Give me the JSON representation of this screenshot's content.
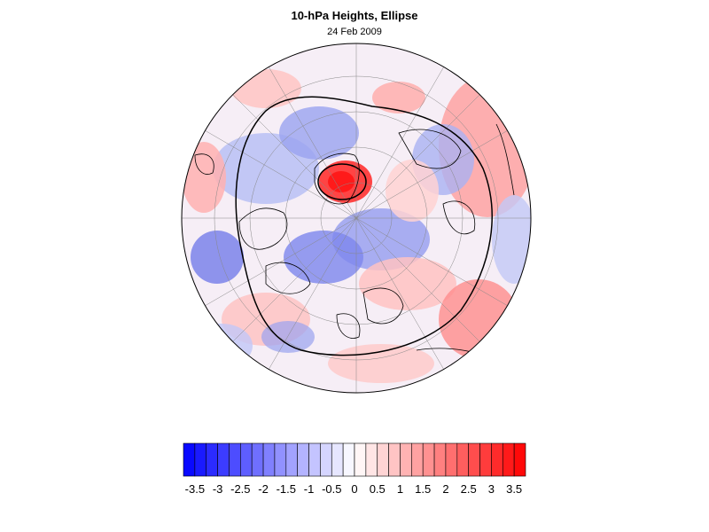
{
  "figure": {
    "title": "10-hPa Heights, Ellipse",
    "subtitle": "24 Feb 2009"
  },
  "map": {
    "projection": "north-polar-stereographic",
    "field": "10-hPa height anomaly (standardized)",
    "contour": "ellipse",
    "colors": {
      "negative_max": "#0000ff",
      "positive_max": "#ff0000",
      "neutral": "#ffffff",
      "coastline": "#000000",
      "grid": "#888888"
    }
  },
  "colorbar": {
    "levels": [
      -3.5,
      -3,
      -2.5,
      -2,
      -1.5,
      -1,
      -0.5,
      0,
      0.5,
      1,
      1.5,
      2,
      2.5,
      3,
      3.5
    ],
    "tick_labels": [
      "-3.5",
      "-3",
      "-2.5",
      "-2",
      "-1.5",
      "-1",
      "-0.5",
      "0",
      "0.5",
      "1",
      "1.5",
      "2",
      "2.5",
      "3",
      "3.5"
    ],
    "n_bins": 30,
    "colors": {
      "low": "#0000ff",
      "mid": "#ffffff",
      "high": "#ff0000"
    }
  }
}
